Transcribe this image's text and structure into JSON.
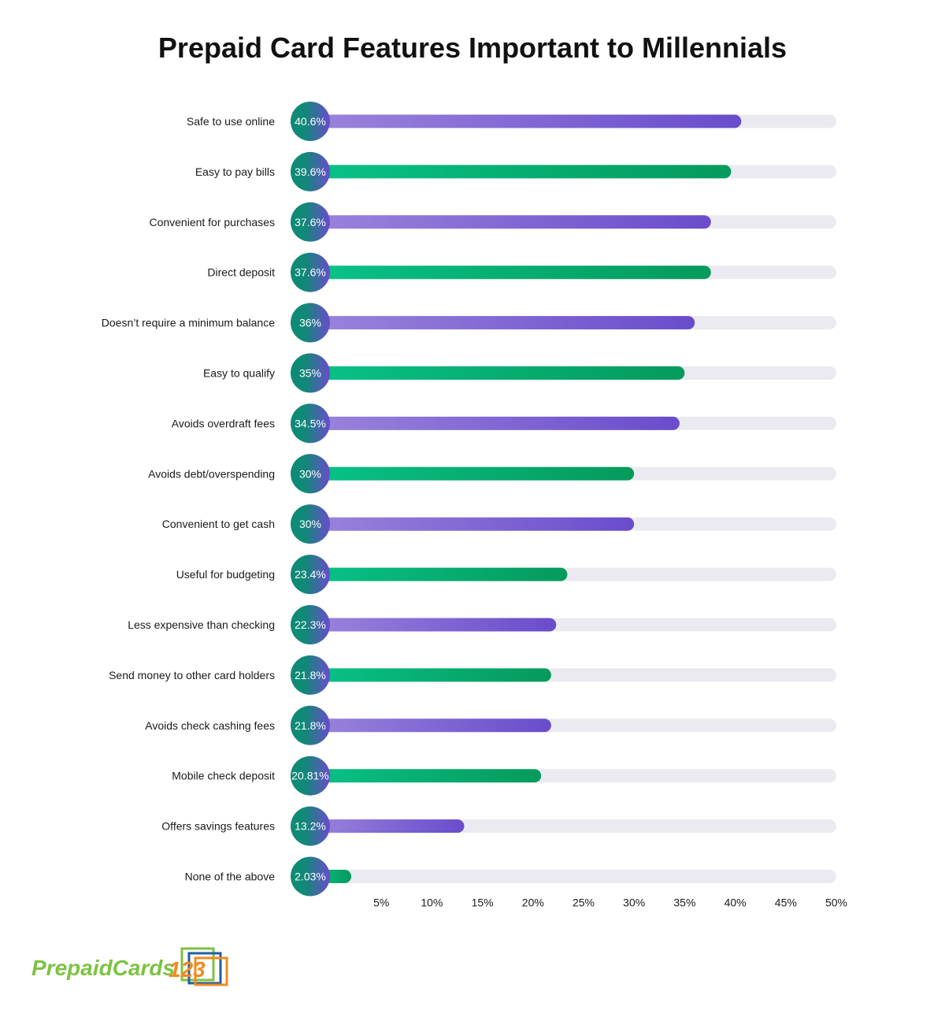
{
  "chart_data": {
    "type": "bar",
    "orientation": "horizontal",
    "title": "Prepaid Card Features Important to Millennials",
    "categories": [
      "Safe to use online",
      "Easy to pay bills",
      "Convenient for purchases",
      "Direct deposit",
      "Doesn’t require a minimum balance",
      "Easy to qualify",
      "Avoids overdraft fees",
      "Avoids debt/overspending",
      "Convenient to get cash",
      "Useful for budgeting",
      "Less expensive than checking",
      "Send money to other card holders",
      "Avoids check cashing fees",
      "Mobile check deposit",
      "Offers savings features",
      "None of the above"
    ],
    "values": [
      40.6,
      39.6,
      37.6,
      37.6,
      36,
      35,
      34.5,
      30,
      30,
      23.4,
      22.3,
      21.8,
      21.8,
      20.81,
      13.2,
      2.03
    ],
    "value_labels": [
      "40.6%",
      "39.6%",
      "37.6%",
      "37.6%",
      "36%",
      "35%",
      "34.5%",
      "30%",
      "30%",
      "23.4%",
      "22.3%",
      "21.8%",
      "21.8%",
      "20.81%",
      "13.2%",
      "2.03%"
    ],
    "x_ticks": [
      "5%",
      "10%",
      "15%",
      "20%",
      "25%",
      "30%",
      "35%",
      "40%",
      "45%",
      "50%"
    ],
    "xlim": [
      0,
      50
    ],
    "xlabel": "",
    "ylabel": "",
    "legend": "none",
    "grid": false,
    "colors": {
      "purple_start": "#9a84dc",
      "purple_end": "#6a4ccc",
      "green_start": "#08c288",
      "green_end": "#059a5c",
      "track": "#ebeaf0",
      "circle_start": "#0f8a76",
      "circle_end": "#6a4ccc"
    }
  },
  "logo": {
    "part1": "PrepaidCards",
    "part2": "123",
    "color1": "#7dc242",
    "color2": "#1f5fa0",
    "color3": "#f28a1f"
  }
}
